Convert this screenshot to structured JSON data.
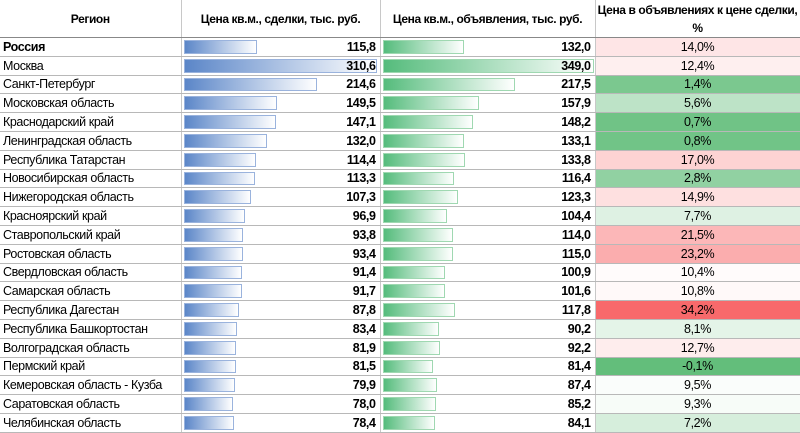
{
  "headers": [
    "Регион",
    "Цена кв.м., сделки, тыс. руб.",
    "Цена кв.м., объявления, тыс. руб.",
    "Цена в объявлениях к цене сделки, %"
  ],
  "colors": {
    "bar_deal": "#5b86c8",
    "bar_ad": "#55bc7c",
    "scale_min": "#63be7b",
    "scale_mid": "#ffffff",
    "scale_max": "#f8696b"
  },
  "rows": [
    {
      "region": "Россия",
      "deal": "115,8",
      "ad": "132,0",
      "ratio": "14,0%",
      "bold": true
    },
    {
      "region": "Москва",
      "deal": "310,6",
      "ad": "349,0",
      "ratio": "12,4%"
    },
    {
      "region": "Санкт-Петербург",
      "deal": "214,6",
      "ad": "217,5",
      "ratio": "1,4%"
    },
    {
      "region": "Московская область",
      "deal": "149,5",
      "ad": "157,9",
      "ratio": "5,6%"
    },
    {
      "region": "Краснодарский край",
      "deal": "147,1",
      "ad": "148,2",
      "ratio": "0,7%"
    },
    {
      "region": "Ленинградская область",
      "deal": "132,0",
      "ad": "133,1",
      "ratio": "0,8%"
    },
    {
      "region": "Республика Татарстан",
      "deal": "114,4",
      "ad": "133,8",
      "ratio": "17,0%"
    },
    {
      "region": "Новосибирская область",
      "deal": "113,3",
      "ad": "116,4",
      "ratio": "2,8%"
    },
    {
      "region": "Нижегородская область",
      "deal": "107,3",
      "ad": "123,3",
      "ratio": "14,9%"
    },
    {
      "region": "Красноярский край",
      "deal": "96,9",
      "ad": "104,4",
      "ratio": "7,7%"
    },
    {
      "region": "Ставропольский край",
      "deal": "93,8",
      "ad": "114,0",
      "ratio": "21,5%"
    },
    {
      "region": "Ростовская область",
      "deal": "93,4",
      "ad": "115,0",
      "ratio": "23,2%"
    },
    {
      "region": "Свердловская область",
      "deal": "91,4",
      "ad": "100,9",
      "ratio": "10,4%"
    },
    {
      "region": "Самарская область",
      "deal": "91,7",
      "ad": "101,6",
      "ratio": "10,8%"
    },
    {
      "region": "Республика Дагестан",
      "deal": "87,8",
      "ad": "117,8",
      "ratio": "34,2%"
    },
    {
      "region": "Республика Башкортостан",
      "deal": "83,4",
      "ad": "90,2",
      "ratio": "8,1%"
    },
    {
      "region": "Волгоградская область",
      "deal": "81,9",
      "ad": "92,2",
      "ratio": "12,7%"
    },
    {
      "region": "Пермский край",
      "deal": "81,5",
      "ad": "81,4",
      "ratio": "-0,1%"
    },
    {
      "region": "Кемеровская область - Кузба",
      "deal": "79,9",
      "ad": "87,4",
      "ratio": "9,5%"
    },
    {
      "region": "Саратовская область",
      "deal": "78,0",
      "ad": "85,2",
      "ratio": "9,3%"
    },
    {
      "region": "Челябинская область",
      "deal": "78,4",
      "ad": "84,1",
      "ratio": "7,2%"
    }
  ]
}
